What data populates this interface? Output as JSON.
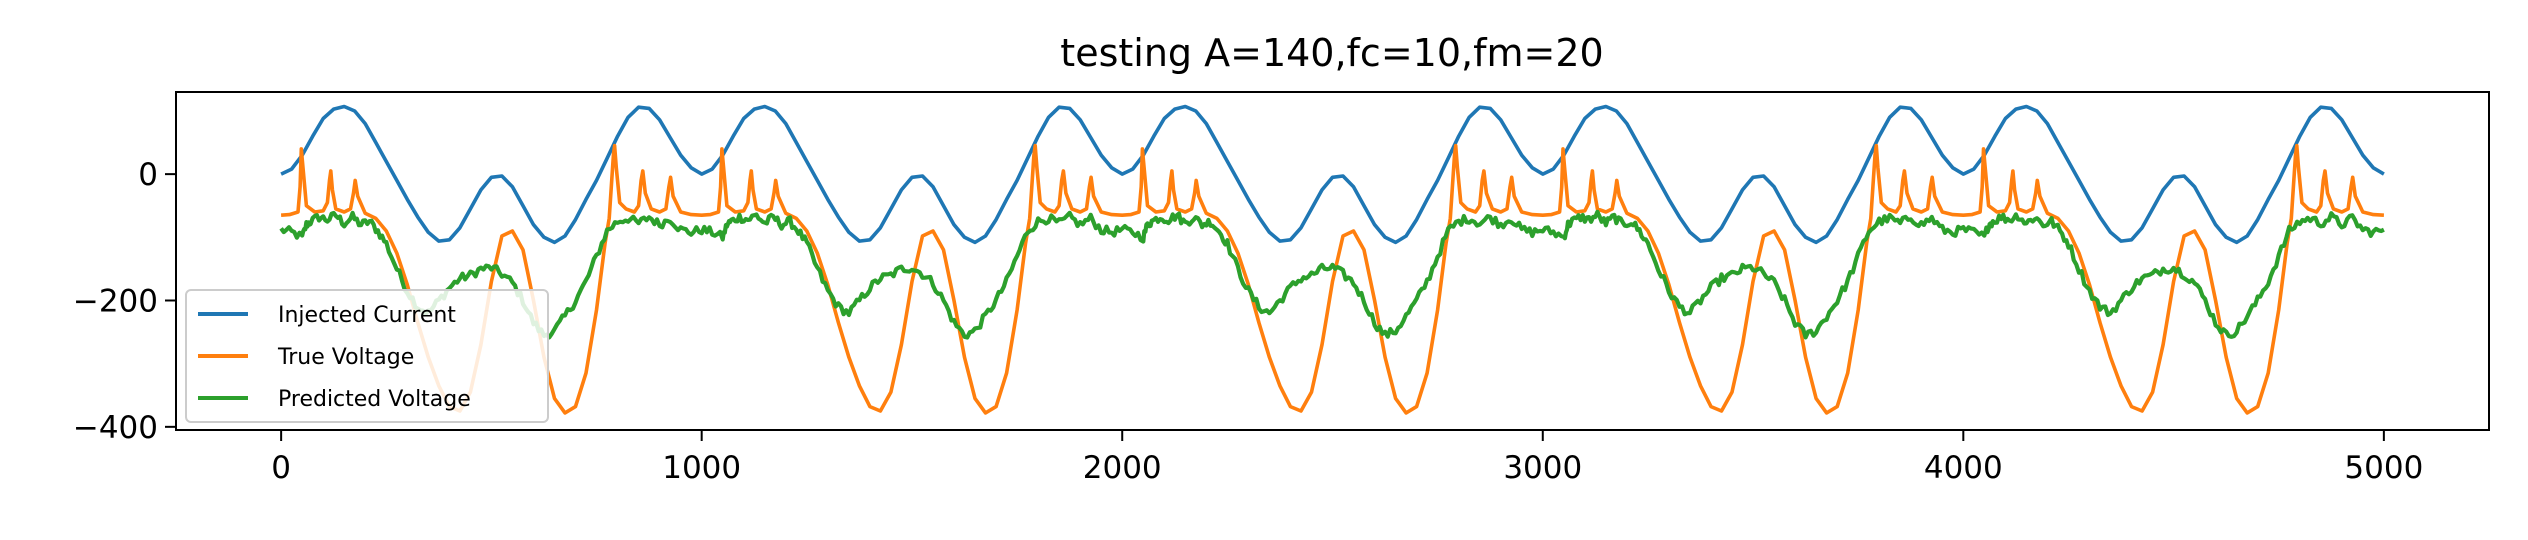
{
  "chart_data": {
    "type": "line",
    "title": "testing A=140,fc=10,fm=20",
    "xlabel": "",
    "ylabel": "",
    "xlim": [
      -250,
      5250
    ],
    "ylim": [
      -405,
      130
    ],
    "x_ticks": [
      0,
      1000,
      2000,
      3000,
      4000,
      5000
    ],
    "x_tick_labels": [
      "0",
      "1000",
      "2000",
      "3000",
      "4000",
      "5000"
    ],
    "y_ticks": [
      0,
      -200,
      -400
    ],
    "y_tick_labels": [
      "0",
      "−200",
      "−400"
    ],
    "grid": false,
    "legend_position": "lower-left",
    "period": 1000,
    "n_samples": 5000,
    "series": [
      {
        "name": "Injected Current",
        "color": "#1f77b4",
        "values": [
          [
            0,
            0
          ],
          [
            25,
            8
          ],
          [
            50,
            30
          ],
          [
            75,
            60
          ],
          [
            100,
            88
          ],
          [
            125,
            103
          ],
          [
            150,
            107
          ],
          [
            175,
            100
          ],
          [
            200,
            80
          ],
          [
            225,
            50
          ],
          [
            250,
            20
          ],
          [
            275,
            -10
          ],
          [
            300,
            -40
          ],
          [
            325,
            -68
          ],
          [
            350,
            -92
          ],
          [
            375,
            -106
          ],
          [
            400,
            -104
          ],
          [
            425,
            -85
          ],
          [
            450,
            -55
          ],
          [
            475,
            -25
          ],
          [
            500,
            -5
          ],
          [
            525,
            -3
          ],
          [
            550,
            -20
          ],
          [
            575,
            -50
          ],
          [
            600,
            -80
          ],
          [
            625,
            -100
          ],
          [
            650,
            -108
          ],
          [
            675,
            -98
          ],
          [
            700,
            -72
          ],
          [
            725,
            -40
          ],
          [
            750,
            -10
          ],
          [
            775,
            25
          ],
          [
            800,
            60
          ],
          [
            825,
            90
          ],
          [
            850,
            106
          ],
          [
            875,
            104
          ],
          [
            900,
            86
          ],
          [
            925,
            58
          ],
          [
            950,
            30
          ],
          [
            975,
            10
          ],
          [
            1000,
            0
          ]
        ]
      },
      {
        "name": "True Voltage",
        "color": "#ff7f0e",
        "values": [
          [
            0,
            -65
          ],
          [
            20,
            -64
          ],
          [
            40,
            -60
          ],
          [
            45,
            -20
          ],
          [
            48,
            40
          ],
          [
            52,
            10
          ],
          [
            60,
            -50
          ],
          [
            80,
            -60
          ],
          [
            100,
            -58
          ],
          [
            110,
            -45
          ],
          [
            115,
            -10
          ],
          [
            118,
            5
          ],
          [
            122,
            -25
          ],
          [
            130,
            -55
          ],
          [
            150,
            -60
          ],
          [
            165,
            -55
          ],
          [
            172,
            -30
          ],
          [
            176,
            -10
          ],
          [
            182,
            -35
          ],
          [
            200,
            -62
          ],
          [
            225,
            -70
          ],
          [
            250,
            -90
          ],
          [
            275,
            -125
          ],
          [
            300,
            -175
          ],
          [
            325,
            -235
          ],
          [
            350,
            -290
          ],
          [
            375,
            -335
          ],
          [
            400,
            -368
          ],
          [
            425,
            -375
          ],
          [
            450,
            -345
          ],
          [
            475,
            -270
          ],
          [
            500,
            -170
          ],
          [
            525,
            -98
          ],
          [
            550,
            -90
          ],
          [
            575,
            -120
          ],
          [
            600,
            -200
          ],
          [
            625,
            -290
          ],
          [
            650,
            -355
          ],
          [
            675,
            -378
          ],
          [
            700,
            -368
          ],
          [
            725,
            -315
          ],
          [
            750,
            -215
          ],
          [
            770,
            -110
          ],
          [
            780,
            -70
          ],
          [
            785,
            -20
          ],
          [
            790,
            30
          ],
          [
            793,
            45
          ],
          [
            797,
            10
          ],
          [
            805,
            -45
          ],
          [
            820,
            -55
          ],
          [
            840,
            -60
          ],
          [
            850,
            -50
          ],
          [
            856,
            -10
          ],
          [
            860,
            5
          ],
          [
            866,
            -30
          ],
          [
            880,
            -55
          ],
          [
            900,
            -60
          ],
          [
            915,
            -55
          ],
          [
            922,
            -20
          ],
          [
            926,
            -5
          ],
          [
            932,
            -35
          ],
          [
            950,
            -60
          ],
          [
            975,
            -64
          ],
          [
            1000,
            -65
          ]
        ]
      },
      {
        "name": "Predicted Voltage",
        "color": "#2ca02c",
        "values": [
          [
            0,
            -88
          ],
          [
            25,
            -92
          ],
          [
            50,
            -100
          ],
          [
            60,
            -80
          ],
          [
            70,
            -75
          ],
          [
            90,
            -68
          ],
          [
            110,
            -72
          ],
          [
            130,
            -65
          ],
          [
            150,
            -78
          ],
          [
            170,
            -68
          ],
          [
            190,
            -80
          ],
          [
            210,
            -75
          ],
          [
            230,
            -90
          ],
          [
            250,
            -110
          ],
          [
            275,
            -150
          ],
          [
            300,
            -185
          ],
          [
            325,
            -210
          ],
          [
            350,
            -220
          ],
          [
            375,
            -200
          ],
          [
            400,
            -180
          ],
          [
            425,
            -165
          ],
          [
            450,
            -160
          ],
          [
            475,
            -150
          ],
          [
            500,
            -148
          ],
          [
            525,
            -158
          ],
          [
            550,
            -172
          ],
          [
            575,
            -200
          ],
          [
            600,
            -235
          ],
          [
            625,
            -255
          ],
          [
            650,
            -248
          ],
          [
            675,
            -225
          ],
          [
            700,
            -200
          ],
          [
            725,
            -170
          ],
          [
            750,
            -130
          ],
          [
            775,
            -90
          ],
          [
            800,
            -75
          ],
          [
            825,
            -70
          ],
          [
            850,
            -78
          ],
          [
            875,
            -68
          ],
          [
            900,
            -80
          ],
          [
            925,
            -70
          ],
          [
            950,
            -88
          ],
          [
            975,
            -92
          ],
          [
            1000,
            -88
          ]
        ]
      }
    ]
  }
}
